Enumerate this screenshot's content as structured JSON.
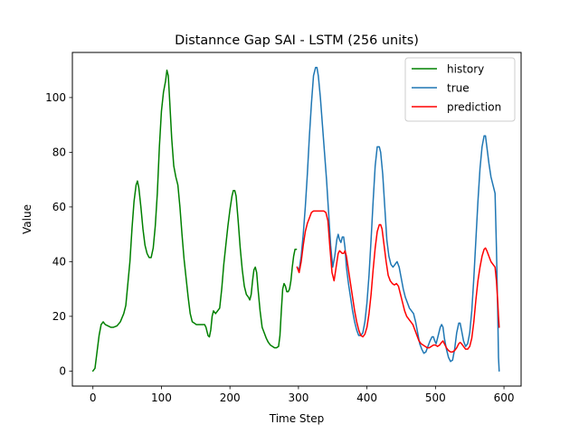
{
  "chart_data": {
    "type": "line",
    "title": "Distannce Gap SAI - LSTM (256 units)",
    "xlabel": "Time Step",
    "ylabel": "Value",
    "xlim": [
      -30,
      625
    ],
    "ylim": [
      -5.5,
      116.5
    ],
    "xticks": [
      0,
      100,
      200,
      300,
      400,
      500,
      600
    ],
    "yticks": [
      0,
      20,
      40,
      60,
      80,
      100
    ],
    "grid": false,
    "legend_position": "top-right",
    "series": [
      {
        "name": "history",
        "color": "#008000",
        "points": [
          [
            0,
            0
          ],
          [
            3,
            1
          ],
          [
            6,
            7
          ],
          [
            9,
            13
          ],
          [
            12,
            17
          ],
          [
            15,
            18
          ],
          [
            18,
            17
          ],
          [
            22,
            16.5
          ],
          [
            26,
            16
          ],
          [
            30,
            16
          ],
          [
            35,
            16.5
          ],
          [
            40,
            18
          ],
          [
            45,
            21
          ],
          [
            48,
            24
          ],
          [
            51,
            32
          ],
          [
            54,
            40
          ],
          [
            57,
            52
          ],
          [
            60,
            62
          ],
          [
            63,
            68
          ],
          [
            65,
            69.5
          ],
          [
            67,
            67
          ],
          [
            70,
            60
          ],
          [
            73,
            52
          ],
          [
            76,
            46
          ],
          [
            79,
            43
          ],
          [
            82,
            41.5
          ],
          [
            85,
            41.5
          ],
          [
            88,
            45
          ],
          [
            91,
            53
          ],
          [
            94,
            65
          ],
          [
            97,
            82
          ],
          [
            100,
            95
          ],
          [
            103,
            102
          ],
          [
            106,
            106
          ],
          [
            108,
            110
          ],
          [
            110,
            108
          ],
          [
            112,
            99
          ],
          [
            115,
            85
          ],
          [
            118,
            75
          ],
          [
            121,
            71
          ],
          [
            124,
            68
          ],
          [
            127,
            60
          ],
          [
            130,
            50
          ],
          [
            133,
            41
          ],
          [
            136,
            34
          ],
          [
            139,
            27
          ],
          [
            142,
            21
          ],
          [
            145,
            18
          ],
          [
            148,
            17.5
          ],
          [
            151,
            17
          ],
          [
            154,
            17
          ],
          [
            157,
            17
          ],
          [
            160,
            17
          ],
          [
            163,
            17
          ],
          [
            165,
            16
          ],
          [
            168,
            13
          ],
          [
            170,
            12.5
          ],
          [
            172,
            15
          ],
          [
            174,
            20
          ],
          [
            176,
            22
          ],
          [
            179,
            21
          ],
          [
            182,
            22
          ],
          [
            185,
            23
          ],
          [
            188,
            30
          ],
          [
            191,
            39
          ],
          [
            194,
            46
          ],
          [
            197,
            53
          ],
          [
            200,
            59
          ],
          [
            203,
            64
          ],
          [
            205,
            66
          ],
          [
            207,
            66
          ],
          [
            209,
            64
          ],
          [
            212,
            55
          ],
          [
            215,
            45
          ],
          [
            218,
            37
          ],
          [
            221,
            31
          ],
          [
            224,
            28
          ],
          [
            227,
            27
          ],
          [
            229,
            26
          ],
          [
            231,
            28
          ],
          [
            233,
            33
          ],
          [
            235,
            37
          ],
          [
            237,
            38
          ],
          [
            239,
            36
          ],
          [
            241,
            30
          ],
          [
            244,
            22
          ],
          [
            247,
            16
          ],
          [
            250,
            14
          ],
          [
            253,
            12
          ],
          [
            256,
            10.5
          ],
          [
            259,
            9.5
          ],
          [
            262,
            9
          ],
          [
            265,
            8.5
          ],
          [
            268,
            8.5
          ],
          [
            271,
            9
          ],
          [
            273,
            13
          ],
          [
            275,
            22
          ],
          [
            277,
            30
          ],
          [
            279,
            32
          ],
          [
            281,
            31
          ],
          [
            283,
            29
          ],
          [
            285,
            29
          ],
          [
            287,
            30
          ],
          [
            289,
            33
          ],
          [
            291,
            38
          ],
          [
            293,
            42
          ],
          [
            295,
            44.5
          ],
          [
            297,
            44.5
          ]
        ]
      },
      {
        "name": "true",
        "color": "#1f77b4",
        "points": [
          [
            298,
            38
          ],
          [
            301,
            37
          ],
          [
            304,
            42
          ],
          [
            307,
            50
          ],
          [
            310,
            60
          ],
          [
            313,
            72
          ],
          [
            316,
            86
          ],
          [
            319,
            98
          ],
          [
            322,
            108
          ],
          [
            325,
            111
          ],
          [
            327,
            111
          ],
          [
            329,
            108
          ],
          [
            332,
            100
          ],
          [
            335,
            90
          ],
          [
            338,
            80
          ],
          [
            341,
            70
          ],
          [
            344,
            58
          ],
          [
            347,
            46
          ],
          [
            350,
            38
          ],
          [
            353,
            42
          ],
          [
            356,
            48
          ],
          [
            358,
            50
          ],
          [
            360,
            48
          ],
          [
            362,
            47
          ],
          [
            364,
            49
          ],
          [
            366,
            49
          ],
          [
            368,
            45
          ],
          [
            370,
            38
          ],
          [
            373,
            32
          ],
          [
            376,
            27
          ],
          [
            379,
            22
          ],
          [
            382,
            18
          ],
          [
            385,
            15
          ],
          [
            388,
            13
          ],
          [
            391,
            13
          ],
          [
            394,
            14
          ],
          [
            397,
            18
          ],
          [
            400,
            25
          ],
          [
            403,
            35
          ],
          [
            406,
            48
          ],
          [
            409,
            62
          ],
          [
            412,
            75
          ],
          [
            415,
            82
          ],
          [
            418,
            82
          ],
          [
            420,
            80
          ],
          [
            423,
            72
          ],
          [
            426,
            60
          ],
          [
            429,
            48
          ],
          [
            432,
            42
          ],
          [
            435,
            39
          ],
          [
            438,
            38
          ],
          [
            441,
            39
          ],
          [
            444,
            40
          ],
          [
            447,
            38
          ],
          [
            450,
            34
          ],
          [
            453,
            30
          ],
          [
            456,
            27
          ],
          [
            459,
            25
          ],
          [
            462,
            23
          ],
          [
            465,
            22
          ],
          [
            468,
            21
          ],
          [
            471,
            18
          ],
          [
            474,
            14
          ],
          [
            477,
            10
          ],
          [
            480,
            8
          ],
          [
            483,
            6.5
          ],
          [
            486,
            7
          ],
          [
            489,
            9
          ],
          [
            492,
            11
          ],
          [
            495,
            12.5
          ],
          [
            497,
            12.5
          ],
          [
            499,
            11
          ],
          [
            501,
            10
          ],
          [
            504,
            13
          ],
          [
            507,
            16
          ],
          [
            509,
            17
          ],
          [
            511,
            16
          ],
          [
            513,
            12
          ],
          [
            516,
            8
          ],
          [
            519,
            5
          ],
          [
            522,
            3.5
          ],
          [
            525,
            4
          ],
          [
            528,
            8
          ],
          [
            531,
            14
          ],
          [
            534,
            17.5
          ],
          [
            536,
            17.5
          ],
          [
            538,
            15
          ],
          [
            541,
            11
          ],
          [
            544,
            9
          ],
          [
            547,
            10
          ],
          [
            550,
            14
          ],
          [
            553,
            22
          ],
          [
            556,
            34
          ],
          [
            559,
            48
          ],
          [
            562,
            62
          ],
          [
            565,
            74
          ],
          [
            568,
            82
          ],
          [
            571,
            86
          ],
          [
            573,
            86
          ],
          [
            575,
            82
          ],
          [
            578,
            76
          ],
          [
            581,
            71
          ],
          [
            584,
            68
          ],
          [
            587,
            65
          ],
          [
            589,
            45
          ],
          [
            591,
            20
          ],
          [
            592,
            5
          ],
          [
            593,
            0
          ]
        ]
      },
      {
        "name": "prediction",
        "color": "#ff0000",
        "points": [
          [
            298,
            38
          ],
          [
            301,
            36
          ],
          [
            304,
            40
          ],
          [
            307,
            46
          ],
          [
            310,
            51
          ],
          [
            313,
            54
          ],
          [
            316,
            56
          ],
          [
            319,
            58
          ],
          [
            322,
            58.5
          ],
          [
            325,
            58.5
          ],
          [
            328,
            58.5
          ],
          [
            331,
            58.5
          ],
          [
            334,
            58.5
          ],
          [
            337,
            58.5
          ],
          [
            340,
            58
          ],
          [
            343,
            55
          ],
          [
            346,
            45
          ],
          [
            349,
            36
          ],
          [
            352,
            33
          ],
          [
            355,
            38
          ],
          [
            358,
            43
          ],
          [
            360,
            44
          ],
          [
            362,
            43.5
          ],
          [
            364,
            43
          ],
          [
            366,
            43
          ],
          [
            368,
            44
          ],
          [
            370,
            42
          ],
          [
            373,
            37
          ],
          [
            376,
            32
          ],
          [
            379,
            27
          ],
          [
            382,
            22
          ],
          [
            385,
            18
          ],
          [
            388,
            15
          ],
          [
            391,
            13
          ],
          [
            394,
            12.5
          ],
          [
            397,
            13.5
          ],
          [
            400,
            16
          ],
          [
            403,
            21
          ],
          [
            406,
            28
          ],
          [
            409,
            37
          ],
          [
            412,
            45
          ],
          [
            415,
            51
          ],
          [
            418,
            53.5
          ],
          [
            420,
            53.5
          ],
          [
            422,
            52
          ],
          [
            425,
            46
          ],
          [
            428,
            40
          ],
          [
            431,
            35
          ],
          [
            434,
            33
          ],
          [
            437,
            32
          ],
          [
            440,
            31.5
          ],
          [
            443,
            32
          ],
          [
            446,
            31
          ],
          [
            449,
            28
          ],
          [
            452,
            25
          ],
          [
            455,
            22
          ],
          [
            458,
            20
          ],
          [
            461,
            19
          ],
          [
            464,
            18
          ],
          [
            467,
            17
          ],
          [
            470,
            15
          ],
          [
            473,
            13
          ],
          [
            476,
            11
          ],
          [
            479,
            10
          ],
          [
            482,
            9.5
          ],
          [
            485,
            9
          ],
          [
            488,
            8.5
          ],
          [
            491,
            8.5
          ],
          [
            494,
            9
          ],
          [
            497,
            9.5
          ],
          [
            500,
            9.5
          ],
          [
            503,
            9
          ],
          [
            506,
            9.5
          ],
          [
            509,
            10.5
          ],
          [
            511,
            11
          ],
          [
            513,
            10
          ],
          [
            516,
            8.5
          ],
          [
            519,
            7.5
          ],
          [
            522,
            7
          ],
          [
            525,
            7
          ],
          [
            528,
            7.5
          ],
          [
            531,
            8.5
          ],
          [
            534,
            10
          ],
          [
            536,
            10.5
          ],
          [
            538,
            10
          ],
          [
            541,
            9
          ],
          [
            544,
            8
          ],
          [
            547,
            8
          ],
          [
            550,
            9
          ],
          [
            553,
            12
          ],
          [
            556,
            18
          ],
          [
            559,
            26
          ],
          [
            562,
            33
          ],
          [
            565,
            38
          ],
          [
            568,
            42
          ],
          [
            571,
            44.5
          ],
          [
            573,
            45
          ],
          [
            575,
            44
          ],
          [
            578,
            42
          ],
          [
            581,
            40
          ],
          [
            584,
            39
          ],
          [
            587,
            38
          ],
          [
            589,
            33
          ],
          [
            591,
            25
          ],
          [
            592,
            20
          ],
          [
            593,
            16
          ]
        ]
      }
    ]
  }
}
